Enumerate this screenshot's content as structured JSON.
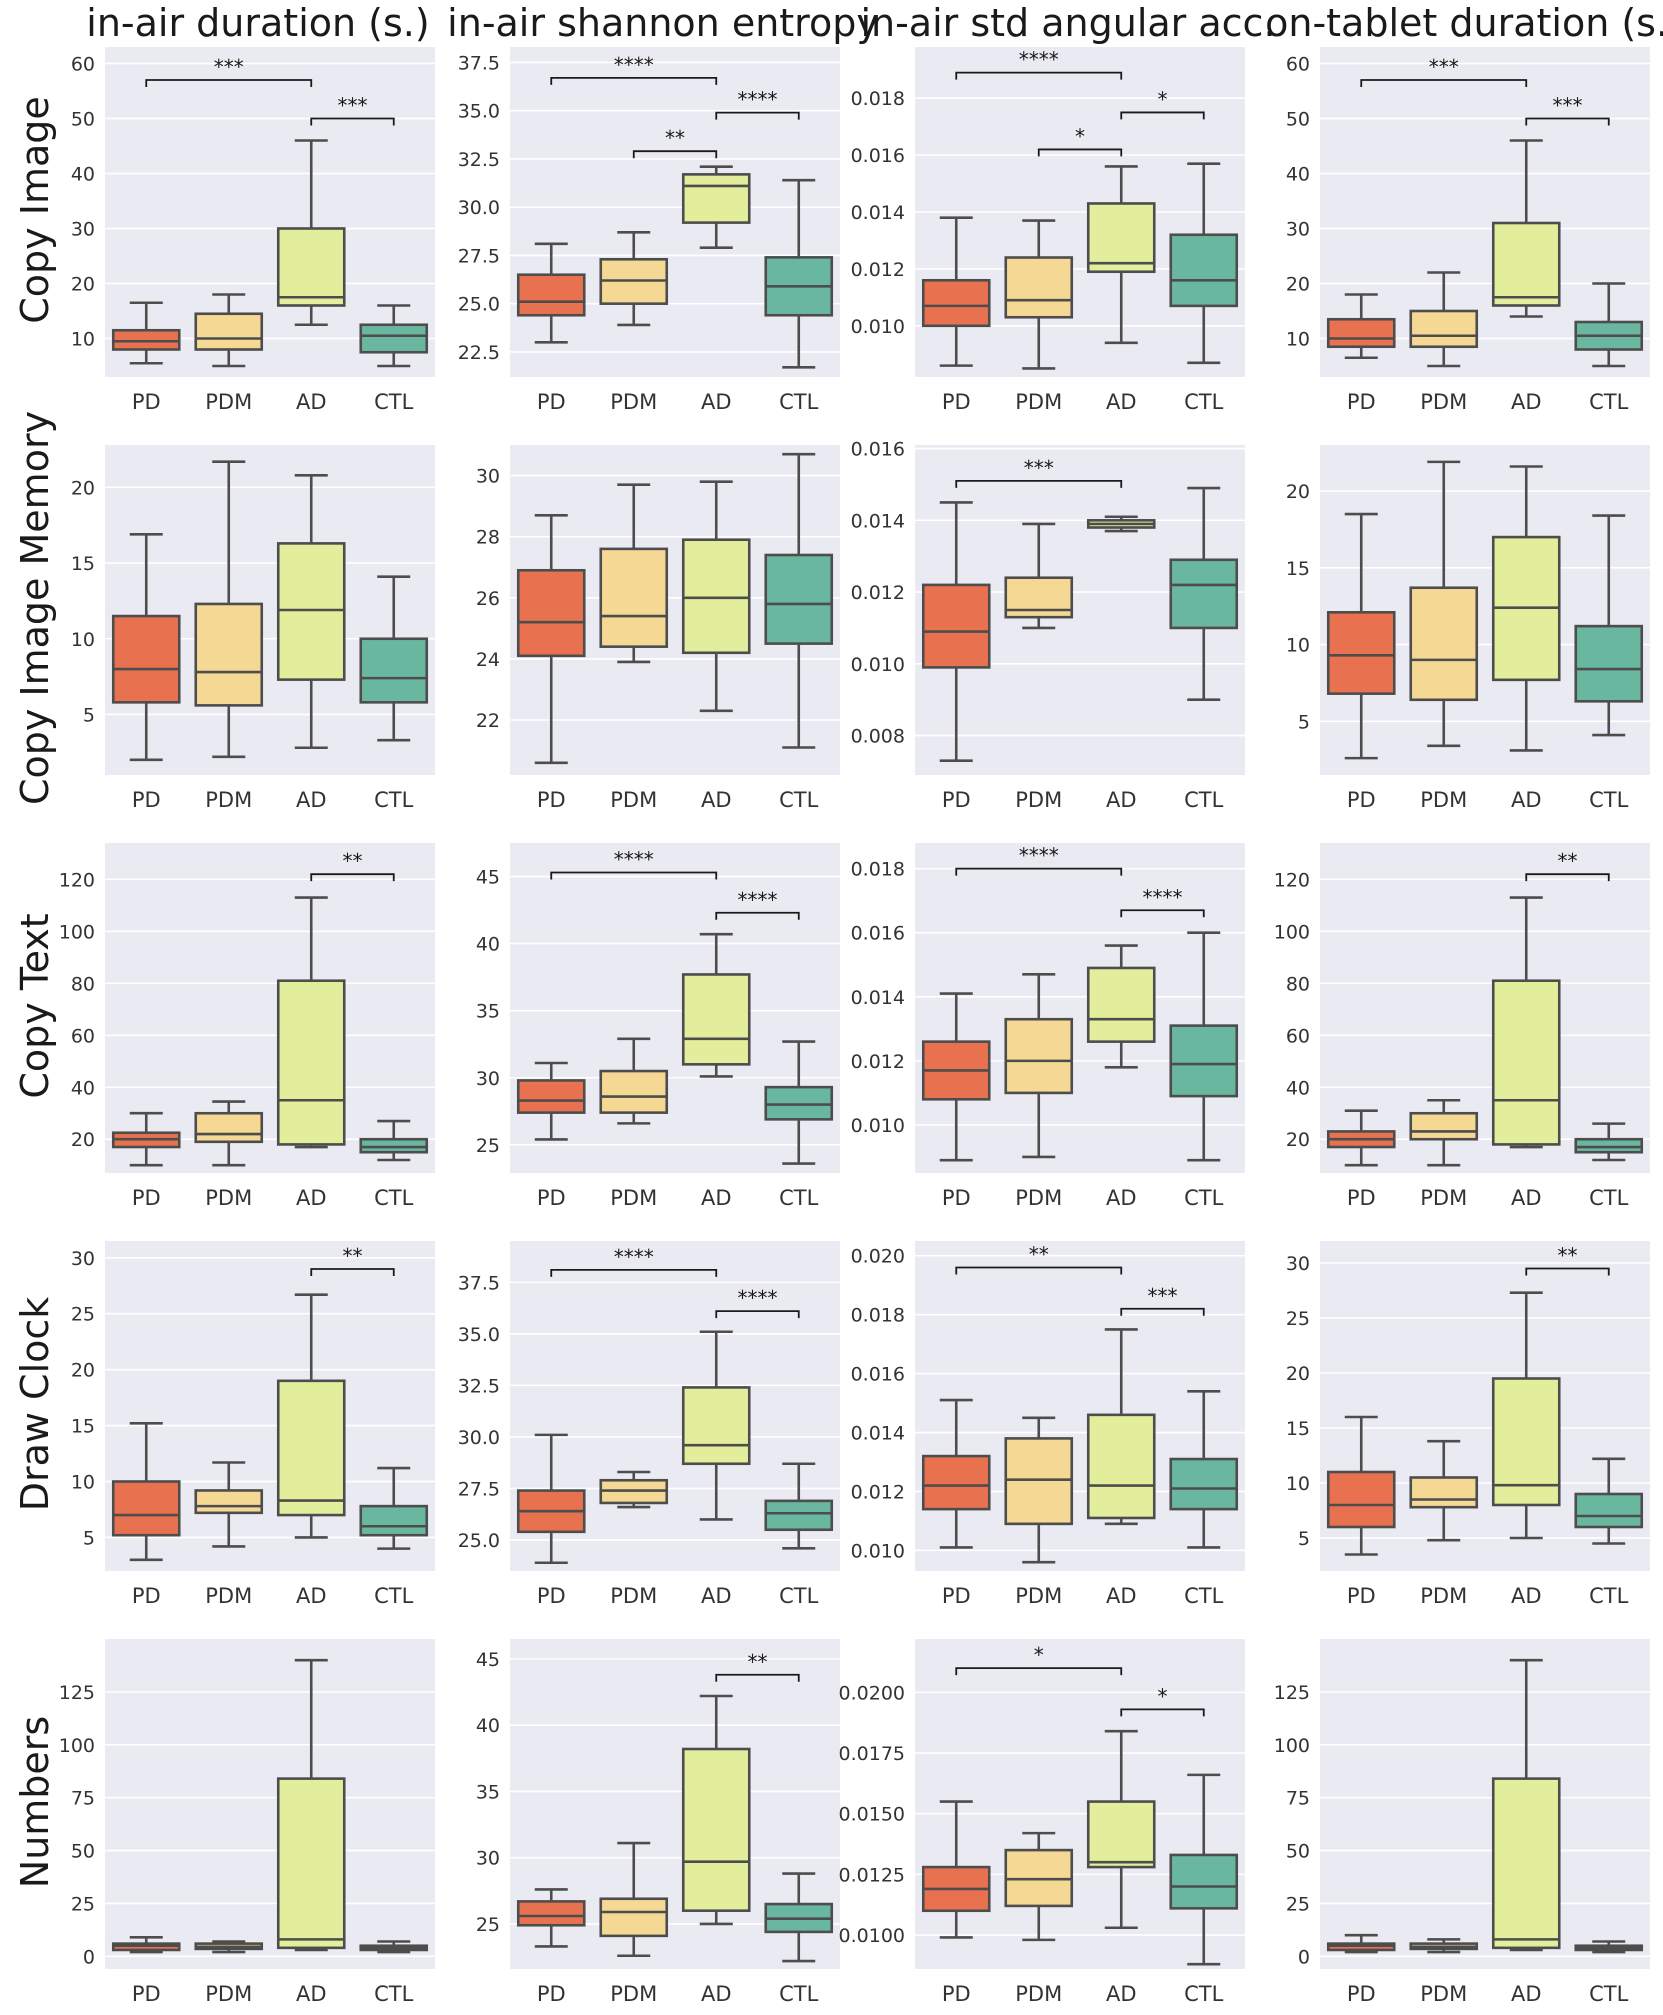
{
  "figure": {
    "column_titles": [
      "in-air duration (s.)",
      "in-air shannon entropy",
      "in-air std angular acc.",
      "on-tablet duration (s.)"
    ],
    "row_titles": [
      "Copy Image",
      "Copy Image Memory",
      "Copy Text",
      "Draw Clock",
      "Numbers"
    ],
    "categories": [
      "PD",
      "PDM",
      "AD",
      "CTL"
    ],
    "colors": {
      "PD": "#e8724f",
      "PDM": "#f5d894",
      "AD": "#e3ee9c",
      "CTL": "#6ab79f",
      "panel_bg": "#eaeaf2",
      "line": "#4d4d4d"
    }
  },
  "chart_data": [
    {
      "type": "box",
      "row": "Copy Image",
      "column": "in-air duration (s.)",
      "ylim": [
        3,
        63
      ],
      "yticks": [
        10,
        20,
        30,
        40,
        50,
        60
      ],
      "yticklabels": [
        "10",
        "20",
        "30",
        "40",
        "50",
        "60"
      ],
      "boxes": [
        [
          5.5,
          8,
          9.5,
          11.5,
          16.5
        ],
        [
          5,
          8,
          10,
          14.5,
          18
        ],
        [
          12.5,
          16,
          17.5,
          30,
          46
        ],
        [
          5,
          7.5,
          10.5,
          12.5,
          16
        ]
      ],
      "significance": [
        {
          "from": "PD",
          "to": "AD",
          "label": "***",
          "y": 57
        },
        {
          "from": "AD",
          "to": "CTL",
          "label": "***",
          "y": 50
        }
      ]
    },
    {
      "type": "box",
      "row": "Copy Image",
      "column": "in-air shannon entropy",
      "ylim": [
        21.2,
        38.3
      ],
      "yticks": [
        22.5,
        25,
        27.5,
        30,
        32.5,
        35,
        37.5
      ],
      "yticklabels": [
        "22.5",
        "25.0",
        "27.5",
        "30.0",
        "32.5",
        "35.0",
        "37.5"
      ],
      "boxes": [
        [
          23,
          24.4,
          25.1,
          26.5,
          28.1
        ],
        [
          23.9,
          25,
          26.2,
          27.3,
          28.7
        ],
        [
          27.9,
          29.2,
          31.1,
          31.7,
          32.1
        ],
        [
          21.7,
          24.4,
          25.9,
          27.4,
          31.4
        ]
      ],
      "significance": [
        {
          "from": "PD",
          "to": "AD",
          "label": "****",
          "y": 36.7
        },
        {
          "from": "AD",
          "to": "CTL",
          "label": "****",
          "y": 34.9
        },
        {
          "from": "PDM",
          "to": "AD",
          "label": "**",
          "y": 32.9
        }
      ]
    },
    {
      "type": "box",
      "row": "Copy Image",
      "column": "in-air std angular acc.",
      "ylim": [
        0.0082,
        0.0198
      ],
      "yticks": [
        0.01,
        0.012,
        0.014,
        0.016,
        0.018
      ],
      "yticklabels": [
        "0.010",
        "0.012",
        "0.014",
        "0.016",
        "0.018"
      ],
      "boxes": [
        [
          0.0086,
          0.01,
          0.0107,
          0.0116,
          0.0138
        ],
        [
          0.0085,
          0.0103,
          0.0109,
          0.0124,
          0.0137
        ],
        [
          0.0094,
          0.0119,
          0.0122,
          0.0143,
          0.0156
        ],
        [
          0.0087,
          0.0107,
          0.0116,
          0.0132,
          0.0157
        ]
      ],
      "significance": [
        {
          "from": "PD",
          "to": "AD",
          "label": "****",
          "y": 0.0189
        },
        {
          "from": "AD",
          "to": "CTL",
          "label": "*",
          "y": 0.0175
        },
        {
          "from": "PDM",
          "to": "AD",
          "label": "*",
          "y": 0.0162
        }
      ]
    },
    {
      "type": "box",
      "row": "Copy Image",
      "column": "on-tablet duration (s.)",
      "ylim": [
        3,
        63
      ],
      "yticks": [
        10,
        20,
        30,
        40,
        50,
        60
      ],
      "yticklabels": [
        "10",
        "20",
        "30",
        "40",
        "50",
        "60"
      ],
      "boxes": [
        [
          6.5,
          8.5,
          10,
          13.5,
          18
        ],
        [
          5,
          8.5,
          10.5,
          15,
          22
        ],
        [
          14,
          16,
          17.5,
          31,
          46
        ],
        [
          5,
          8,
          10.5,
          13,
          20
        ]
      ],
      "significance": [
        {
          "from": "PD",
          "to": "AD",
          "label": "***",
          "y": 57
        },
        {
          "from": "AD",
          "to": "CTL",
          "label": "***",
          "y": 50
        }
      ]
    },
    {
      "type": "box",
      "row": "Copy Image Memory",
      "column": "in-air duration (s.)",
      "ylim": [
        1,
        22.8
      ],
      "yticks": [
        5,
        10,
        15,
        20
      ],
      "yticklabels": [
        "5",
        "10",
        "15",
        "20"
      ],
      "boxes": [
        [
          2,
          5.8,
          8,
          11.5,
          16.9
        ],
        [
          2.2,
          5.6,
          7.8,
          12.3,
          21.7
        ],
        [
          2.8,
          7.3,
          11.9,
          16.3,
          20.8
        ],
        [
          3.3,
          5.8,
          7.4,
          10,
          14.1
        ]
      ],
      "significance": []
    },
    {
      "type": "box",
      "row": "Copy Image Memory",
      "column": "in-air shannon entropy",
      "ylim": [
        20.2,
        31
      ],
      "yticks": [
        22,
        24,
        26,
        28,
        30
      ],
      "yticklabels": [
        "22",
        "24",
        "26",
        "28",
        "30"
      ],
      "boxes": [
        [
          20.6,
          24.1,
          25.2,
          26.9,
          28.7
        ],
        [
          23.9,
          24.4,
          25.4,
          27.6,
          29.7
        ],
        [
          22.3,
          24.2,
          26,
          27.9,
          29.8
        ],
        [
          21.1,
          24.5,
          25.8,
          27.4,
          30.7
        ]
      ],
      "significance": []
    },
    {
      "type": "box",
      "row": "Copy Image Memory",
      "column": "in-air std angular acc.",
      "ylim": [
        0.0069,
        0.0161
      ],
      "yticks": [
        0.008,
        0.01,
        0.012,
        0.014,
        0.016
      ],
      "yticklabels": [
        "0.008",
        "0.010",
        "0.012",
        "0.014",
        "0.016"
      ],
      "boxes": [
        [
          0.0073,
          0.0099,
          0.0109,
          0.0122,
          0.0145
        ],
        [
          0.011,
          0.0113,
          0.0115,
          0.0124,
          0.0139
        ],
        [
          0.0137,
          0.0138,
          0.0139,
          0.014,
          0.0141
        ],
        [
          0.009,
          0.011,
          0.0122,
          0.0129,
          0.0149
        ]
      ],
      "significance": [
        {
          "from": "PD",
          "to": "AD",
          "label": "***",
          "y": 0.0151
        }
      ]
    },
    {
      "type": "box",
      "row": "Copy Image Memory",
      "column": "on-tablet duration (s.)",
      "ylim": [
        1.5,
        23
      ],
      "yticks": [
        5,
        10,
        15,
        20
      ],
      "yticklabels": [
        "5",
        "10",
        "15",
        "20"
      ],
      "boxes": [
        [
          2.6,
          6.8,
          9.3,
          12.1,
          18.5
        ],
        [
          3.4,
          6.4,
          9,
          13.7,
          21.9
        ],
        [
          3.1,
          7.7,
          12.4,
          17,
          21.6
        ],
        [
          4.1,
          6.3,
          8.4,
          11.2,
          18.4
        ]
      ],
      "significance": []
    },
    {
      "type": "box",
      "row": "Copy Text",
      "column": "in-air duration (s.)",
      "ylim": [
        7,
        134
      ],
      "yticks": [
        20,
        40,
        60,
        80,
        100,
        120
      ],
      "yticklabels": [
        "20",
        "40",
        "60",
        "80",
        "100",
        "120"
      ],
      "boxes": [
        [
          10,
          17,
          20,
          22.5,
          30
        ],
        [
          10,
          19,
          22,
          30,
          34.5
        ],
        [
          17,
          18,
          35,
          81,
          113
        ],
        [
          12,
          15,
          17,
          20,
          27
        ]
      ],
      "significance": [
        {
          "from": "AD",
          "to": "CTL",
          "label": "**",
          "y": 122
        }
      ]
    },
    {
      "type": "box",
      "row": "Copy Text",
      "column": "in-air shannon entropy",
      "ylim": [
        22.9,
        47.5
      ],
      "yticks": [
        25,
        30,
        35,
        40,
        45
      ],
      "yticklabels": [
        "25",
        "30",
        "35",
        "40",
        "45"
      ],
      "boxes": [
        [
          25.4,
          27.4,
          28.3,
          29.8,
          31.1
        ],
        [
          26.6,
          27.4,
          28.6,
          30.5,
          32.9
        ],
        [
          30.1,
          31,
          32.9,
          37.7,
          40.7
        ],
        [
          23.6,
          26.9,
          28,
          29.3,
          32.7
        ]
      ],
      "significance": [
        {
          "from": "PD",
          "to": "AD",
          "label": "****",
          "y": 45.3
        },
        {
          "from": "AD",
          "to": "CTL",
          "label": "****",
          "y": 42.3
        }
      ]
    },
    {
      "type": "box",
      "row": "Copy Text",
      "column": "in-air std angular acc.",
      "ylim": [
        0.0085,
        0.0188
      ],
      "yticks": [
        0.01,
        0.012,
        0.014,
        0.016,
        0.018
      ],
      "yticklabels": [
        "0.010",
        "0.012",
        "0.014",
        "0.016",
        "0.018"
      ],
      "boxes": [
        [
          0.0089,
          0.0108,
          0.0117,
          0.0126,
          0.0141
        ],
        [
          0.009,
          0.011,
          0.012,
          0.0133,
          0.0147
        ],
        [
          0.0118,
          0.0126,
          0.0133,
          0.0149,
          0.0156
        ],
        [
          0.0089,
          0.0109,
          0.0119,
          0.0131,
          0.016
        ]
      ],
      "significance": [
        {
          "from": "PD",
          "to": "AD",
          "label": "****",
          "y": 0.018
        },
        {
          "from": "AD",
          "to": "CTL",
          "label": "****",
          "y": 0.0167
        }
      ]
    },
    {
      "type": "box",
      "row": "Copy Text",
      "column": "on-tablet duration (s.)",
      "ylim": [
        7,
        134
      ],
      "yticks": [
        20,
        40,
        60,
        80,
        100,
        120
      ],
      "yticklabels": [
        "20",
        "40",
        "60",
        "80",
        "100",
        "120"
      ],
      "boxes": [
        [
          10,
          17,
          20,
          23,
          31
        ],
        [
          10,
          20,
          23,
          30,
          35
        ],
        [
          17,
          18,
          35,
          81,
          113
        ],
        [
          12,
          15,
          17,
          20,
          26
        ]
      ],
      "significance": [
        {
          "from": "AD",
          "to": "CTL",
          "label": "**",
          "y": 122
        }
      ]
    },
    {
      "type": "box",
      "row": "Draw Clock",
      "column": "in-air duration (s.)",
      "ylim": [
        2,
        31.5
      ],
      "yticks": [
        5,
        10,
        15,
        20,
        25,
        30
      ],
      "yticklabels": [
        "5",
        "10",
        "15",
        "20",
        "25",
        "30"
      ],
      "boxes": [
        [
          3,
          5.2,
          7,
          10,
          15.2
        ],
        [
          4.2,
          7.2,
          7.8,
          9.2,
          11.7
        ],
        [
          5,
          7,
          8.3,
          19,
          26.7
        ],
        [
          4,
          5.2,
          6,
          7.8,
          11.2
        ]
      ],
      "significance": [
        {
          "from": "AD",
          "to": "CTL",
          "label": "**",
          "y": 29
        }
      ]
    },
    {
      "type": "box",
      "row": "Draw Clock",
      "column": "in-air shannon entropy",
      "ylim": [
        23.5,
        39.5
      ],
      "yticks": [
        25,
        27.5,
        30,
        32.5,
        35,
        37.5
      ],
      "yticklabels": [
        "25.0",
        "27.5",
        "30.0",
        "32.5",
        "35.0",
        "37.5"
      ],
      "boxes": [
        [
          23.9,
          25.4,
          26.4,
          27.4,
          30.1
        ],
        [
          26.6,
          26.8,
          27.4,
          27.9,
          28.3
        ],
        [
          26,
          28.7,
          29.6,
          32.4,
          35.1
        ],
        [
          24.6,
          25.5,
          26.3,
          26.9,
          28.7
        ]
      ],
      "significance": [
        {
          "from": "PD",
          "to": "AD",
          "label": "****",
          "y": 38.1
        },
        {
          "from": "AD",
          "to": "CTL",
          "label": "****",
          "y": 36.1
        }
      ]
    },
    {
      "type": "box",
      "row": "Draw Clock",
      "column": "in-air std angular acc.",
      "ylim": [
        0.0093,
        0.0205
      ],
      "yticks": [
        0.01,
        0.012,
        0.014,
        0.016,
        0.018,
        0.02
      ],
      "yticklabels": [
        "0.010",
        "0.012",
        "0.014",
        "0.016",
        "0.018",
        "0.020"
      ],
      "boxes": [
        [
          0.0101,
          0.0114,
          0.0122,
          0.0132,
          0.0151
        ],
        [
          0.0096,
          0.0109,
          0.0124,
          0.0138,
          0.0145
        ],
        [
          0.0109,
          0.0111,
          0.0122,
          0.0146,
          0.0175
        ],
        [
          0.0101,
          0.0114,
          0.0121,
          0.0131,
          0.0154
        ]
      ],
      "significance": [
        {
          "from": "PD",
          "to": "AD",
          "label": "**",
          "y": 0.0196
        },
        {
          "from": "AD",
          "to": "CTL",
          "label": "***",
          "y": 0.0182
        }
      ]
    },
    {
      "type": "box",
      "row": "Draw Clock",
      "column": "on-tablet duration (s.)",
      "ylim": [
        2,
        32
      ],
      "yticks": [
        5,
        10,
        15,
        20,
        25,
        30
      ],
      "yticklabels": [
        "5",
        "10",
        "15",
        "20",
        "25",
        "30"
      ],
      "boxes": [
        [
          3.5,
          6,
          8,
          11,
          16
        ],
        [
          4.8,
          7.8,
          8.5,
          10.5,
          13.8
        ],
        [
          5,
          8,
          9.8,
          19.5,
          27.3
        ],
        [
          4.5,
          6,
          7,
          9,
          12.2
        ]
      ],
      "significance": [
        {
          "from": "AD",
          "to": "CTL",
          "label": "**",
          "y": 29.5
        }
      ]
    },
    {
      "type": "box",
      "row": "Numbers",
      "column": "in-air duration (s.)",
      "ylim": [
        -6,
        150
      ],
      "yticks": [
        0,
        25,
        50,
        75,
        100,
        125
      ],
      "yticklabels": [
        "0",
        "25",
        "50",
        "75",
        "100",
        "125"
      ],
      "boxes": [
        [
          2,
          3,
          5,
          6,
          9
        ],
        [
          2,
          3.5,
          4.5,
          6,
          7
        ],
        [
          3,
          4,
          8,
          84,
          140
        ],
        [
          2,
          3,
          4,
          5,
          7
        ]
      ],
      "significance": []
    },
    {
      "type": "box",
      "row": "Numbers",
      "column": "in-air shannon entropy",
      "ylim": [
        21.6,
        46.5
      ],
      "yticks": [
        25,
        30,
        35,
        40,
        45
      ],
      "yticklabels": [
        "25",
        "30",
        "35",
        "40",
        "45"
      ],
      "boxes": [
        [
          23.3,
          24.9,
          25.6,
          26.7,
          27.6
        ],
        [
          22.6,
          24.1,
          25.9,
          26.9,
          31.1
        ],
        [
          25,
          26,
          29.7,
          38.2,
          42.2
        ],
        [
          22.2,
          24.4,
          25.4,
          26.5,
          28.8
        ]
      ],
      "significance": [
        {
          "from": "AD",
          "to": "CTL",
          "label": "**",
          "y": 43.8
        }
      ]
    },
    {
      "type": "box",
      "row": "Numbers",
      "column": "in-air std angular acc.",
      "ylim": [
        0.0086,
        0.0222
      ],
      "yticks": [
        0.01,
        0.0125,
        0.015,
        0.0175,
        0.02
      ],
      "yticklabels": [
        "0.0100",
        "0.0125",
        "0.0150",
        "0.0175",
        "0.0200"
      ],
      "boxes": [
        [
          0.0099,
          0.011,
          0.0119,
          0.0128,
          0.0155
        ],
        [
          0.0098,
          0.0112,
          0.0123,
          0.0135,
          0.0142
        ],
        [
          0.0103,
          0.0128,
          0.013,
          0.0155,
          0.0184
        ],
        [
          0.0088,
          0.0111,
          0.012,
          0.0133,
          0.0166
        ]
      ],
      "significance": [
        {
          "from": "PD",
          "to": "AD",
          "label": "*",
          "y": 0.021
        },
        {
          "from": "AD",
          "to": "CTL",
          "label": "*",
          "y": 0.0193
        }
      ]
    },
    {
      "type": "box",
      "row": "Numbers",
      "column": "on-tablet duration (s.)",
      "ylim": [
        -6,
        150
      ],
      "yticks": [
        0,
        25,
        50,
        75,
        100,
        125
      ],
      "yticklabels": [
        "0",
        "25",
        "50",
        "75",
        "100",
        "125"
      ],
      "boxes": [
        [
          2,
          3,
          5,
          6,
          10
        ],
        [
          2,
          3.5,
          4.5,
          6,
          8
        ],
        [
          3,
          4,
          8,
          84,
          140
        ],
        [
          2,
          3,
          4,
          5,
          7
        ]
      ],
      "significance": []
    }
  ]
}
